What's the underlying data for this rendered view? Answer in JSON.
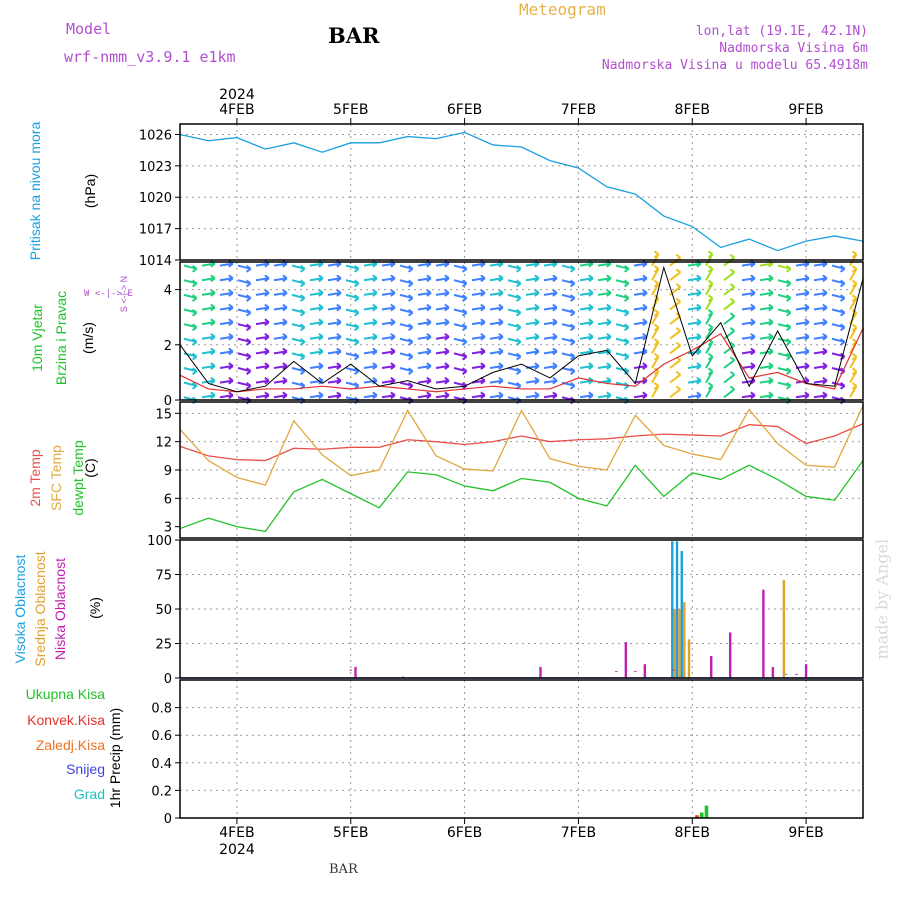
{
  "header": {
    "model_label": "Model",
    "model_name": "wrf-nmm_v3.9.1 e1km",
    "station": "BAR",
    "product": "Meteogram",
    "coords": "lon,lat (19.1E, 42.1N)",
    "elevation": "Nadmorska Visina 6m",
    "model_elevation": "Nadmorska Visina u modelu 65.4918m"
  },
  "time_axis": {
    "year": "2024",
    "days": [
      "4FEB",
      "5FEB",
      "6FEB",
      "7FEB",
      "8FEB",
      "9FEB"
    ],
    "start": "2024-02-03 12:00",
    "end": "2024-02-09 12:00"
  },
  "panels": {
    "pressure": {
      "label": "Pritisak na nivou mora",
      "unit": "(hPa)"
    },
    "wind": {
      "label1": "10m Vjetar",
      "label2": "Brzina i Pravac",
      "unit": "(m/s)",
      "compass": "W <-|-> E",
      "compass_ns": "S <-|-> N"
    },
    "temp": {
      "label1": "2m Temp",
      "label2": "SFC Temp",
      "label3": "dewpt Temp",
      "unit": "(C)"
    },
    "cloud": {
      "label1": "Visoka Oblacnost",
      "label2": "Srednja Oblacnost",
      "label3": "Niska Oblacnost",
      "unit": "(%)"
    },
    "precip": {
      "unit": "1hr Precip (mm)",
      "legend": [
        "Ukupna Kisa",
        "Konvek.Kisa",
        "Zaledj.Kisa",
        "Snijeg",
        "Grad"
      ]
    }
  },
  "footer": {
    "station": "BAR",
    "credit": "made by Angel"
  },
  "colors": {
    "pressure": "#1a9fe0",
    "t2m": "#e8504a",
    "tsfc": "#e0a840",
    "dewpt": "#22c22a",
    "high_cloud": "#1a9fe0",
    "mid_cloud": "#e0a030",
    "low_cloud": "#c020b0",
    "total_rain": "#22c22a",
    "conv_rain": "#e83030",
    "freezing_rain": "#f07020",
    "snow": "#4040e0",
    "hail": "#20c0c0",
    "title_purple": "#b04fd0",
    "meteogram_gold": "#e8b04a"
  },
  "chart_data": [
    {
      "type": "line",
      "panel": "pressure",
      "ylim": [
        1014,
        1027
      ],
      "yticks": [
        1014,
        1017,
        1020,
        1023,
        1026
      ],
      "x": [
        "2024-02-03 12:00",
        "2024-02-03 18:00",
        "2024-02-04 00:00",
        "2024-02-04 06:00",
        "2024-02-04 12:00",
        "2024-02-04 18:00",
        "2024-02-05 00:00",
        "2024-02-05 06:00",
        "2024-02-05 12:00",
        "2024-02-05 18:00",
        "2024-02-06 00:00",
        "2024-02-06 06:00",
        "2024-02-06 12:00",
        "2024-02-06 18:00",
        "2024-02-07 00:00",
        "2024-02-07 06:00",
        "2024-02-07 12:00",
        "2024-02-07 18:00",
        "2024-02-08 00:00",
        "2024-02-08 06:00",
        "2024-02-08 12:00",
        "2024-02-08 18:00",
        "2024-02-09 00:00",
        "2024-02-09 06:00",
        "2024-02-09 12:00"
      ],
      "series": [
        {
          "name": "Pritisak na nivou mora",
          "values": [
            1026.0,
            1025.4,
            1025.7,
            1024.6,
            1025.2,
            1024.3,
            1025.2,
            1025.2,
            1025.8,
            1025.6,
            1026.2,
            1025.0,
            1024.8,
            1023.5,
            1022.8,
            1021.0,
            1020.3,
            1018.2,
            1017.2,
            1015.2,
            1016.0,
            1014.9,
            1015.8,
            1016.3,
            1015.8
          ]
        }
      ]
    },
    {
      "type": "line",
      "panel": "wind",
      "ylim": [
        0,
        5
      ],
      "yticks": [
        0,
        2,
        4
      ],
      "x": [
        "2024-02-03 12:00",
        "2024-02-03 18:00",
        "2024-02-04 00:00",
        "2024-02-04 06:00",
        "2024-02-04 12:00",
        "2024-02-04 18:00",
        "2024-02-05 00:00",
        "2024-02-05 06:00",
        "2024-02-05 12:00",
        "2024-02-05 18:00",
        "2024-02-06 00:00",
        "2024-02-06 06:00",
        "2024-02-06 12:00",
        "2024-02-06 18:00",
        "2024-02-07 00:00",
        "2024-02-07 06:00",
        "2024-02-07 12:00",
        "2024-02-07 18:00",
        "2024-02-08 00:00",
        "2024-02-08 06:00",
        "2024-02-08 12:00",
        "2024-02-08 18:00",
        "2024-02-09 00:00",
        "2024-02-09 06:00",
        "2024-02-09 12:00"
      ],
      "series": [
        {
          "name": "Brzina",
          "values": [
            2.0,
            0.6,
            0.3,
            0.5,
            1.4,
            0.6,
            1.3,
            0.5,
            0.7,
            0.4,
            0.5,
            1.0,
            1.3,
            0.8,
            1.6,
            1.8,
            0.6,
            4.8,
            1.6,
            2.8,
            0.5,
            2.5,
            0.6,
            0.5,
            4.4
          ]
        },
        {
          "name": "Udari",
          "values": [
            0.9,
            0.4,
            0.3,
            0.4,
            0.4,
            0.5,
            0.4,
            0.5,
            0.4,
            0.3,
            0.4,
            0.5,
            0.4,
            0.4,
            0.8,
            0.6,
            0.5,
            1.3,
            1.8,
            2.4,
            0.8,
            1.0,
            0.6,
            0.4,
            2.6
          ]
        }
      ]
    },
    {
      "type": "line",
      "panel": "temperature",
      "ylim": [
        1.8,
        16.2
      ],
      "yticks": [
        3,
        6,
        9,
        12,
        15
      ],
      "x": [
        "2024-02-03 12:00",
        "2024-02-03 18:00",
        "2024-02-04 00:00",
        "2024-02-04 06:00",
        "2024-02-04 12:00",
        "2024-02-04 18:00",
        "2024-02-05 00:00",
        "2024-02-05 06:00",
        "2024-02-05 12:00",
        "2024-02-05 18:00",
        "2024-02-06 00:00",
        "2024-02-06 06:00",
        "2024-02-06 12:00",
        "2024-02-06 18:00",
        "2024-02-07 00:00",
        "2024-02-07 06:00",
        "2024-02-07 12:00",
        "2024-02-07 18:00",
        "2024-02-08 00:00",
        "2024-02-08 06:00",
        "2024-02-08 12:00",
        "2024-02-08 18:00",
        "2024-02-09 00:00",
        "2024-02-09 06:00",
        "2024-02-09 12:00"
      ],
      "series": [
        {
          "name": "2m Temp",
          "values": [
            11.5,
            10.5,
            10.1,
            10.0,
            11.3,
            11.2,
            11.4,
            11.4,
            12.2,
            12.0,
            11.7,
            12.0,
            12.6,
            12.0,
            12.2,
            12.3,
            12.6,
            12.8,
            12.7,
            12.6,
            13.8,
            13.6,
            11.8,
            12.6,
            13.9
          ]
        },
        {
          "name": "SFC Temp",
          "values": [
            13.3,
            10.0,
            8.2,
            7.4,
            14.2,
            10.6,
            8.4,
            9.0,
            15.3,
            10.5,
            9.1,
            8.9,
            15.3,
            10.2,
            9.4,
            9.0,
            14.8,
            11.6,
            10.7,
            10.1,
            15.4,
            11.8,
            9.5,
            9.3,
            15.8
          ]
        },
        {
          "name": "dewpt Temp",
          "values": [
            2.8,
            3.9,
            3.0,
            2.5,
            6.7,
            8.0,
            6.5,
            5.0,
            8.8,
            8.5,
            7.3,
            6.8,
            8.1,
            7.7,
            6.0,
            5.2,
            9.5,
            6.2,
            8.7,
            8.0,
            9.5,
            8.0,
            6.2,
            5.8,
            10.0
          ]
        }
      ]
    },
    {
      "type": "bar",
      "panel": "cloud",
      "ylim": [
        0,
        100
      ],
      "yticks": [
        0,
        25,
        50,
        75,
        100
      ],
      "series": [
        {
          "name": "Visoka Oblacnost",
          "x": [
            "2024-02-07 20:00",
            "2024-02-07 21:00",
            "2024-02-07 22:00",
            "2024-02-08 20:00"
          ],
          "values": [
            99,
            99,
            92,
            3
          ]
        },
        {
          "name": "Srednja Oblacnost",
          "x": [
            "2024-02-07 20:00",
            "2024-02-07 21:00",
            "2024-02-07 22:00",
            "2024-02-07 23:00",
            "2024-02-08 19:00"
          ],
          "values": [
            50,
            50,
            55,
            28,
            71
          ]
        },
        {
          "name": "Niska Oblacnost",
          "x": [
            "2024-02-05 00:00",
            "2024-02-05 01:00",
            "2024-02-05 11:00",
            "2024-02-06 16:00",
            "2024-02-07 08:00",
            "2024-02-07 10:00",
            "2024-02-07 12:00",
            "2024-02-07 14:00",
            "2024-02-07 20:00",
            "2024-02-08 04:00",
            "2024-02-08 08:00",
            "2024-02-08 15:00",
            "2024-02-08 17:00",
            "2024-02-08 22:00",
            "2024-02-09 00:00"
          ],
          "values": [
            6,
            8,
            1,
            8,
            5,
            26,
            5,
            10,
            6,
            16,
            33,
            64,
            8,
            3,
            10
          ]
        }
      ]
    },
    {
      "type": "bar",
      "panel": "precip",
      "ylim": [
        0,
        1
      ],
      "yticks": [
        0,
        0.2,
        0.4,
        0.6,
        0.8
      ],
      "series": [
        {
          "name": "Ukupna Kisa",
          "x": [
            "2024-02-08 02:00",
            "2024-02-08 03:00"
          ],
          "values": [
            0.04,
            0.09
          ]
        },
        {
          "name": "Konvek.Kisa",
          "x": [
            "2024-02-08 01:00"
          ],
          "values": [
            0.02
          ]
        }
      ]
    }
  ]
}
